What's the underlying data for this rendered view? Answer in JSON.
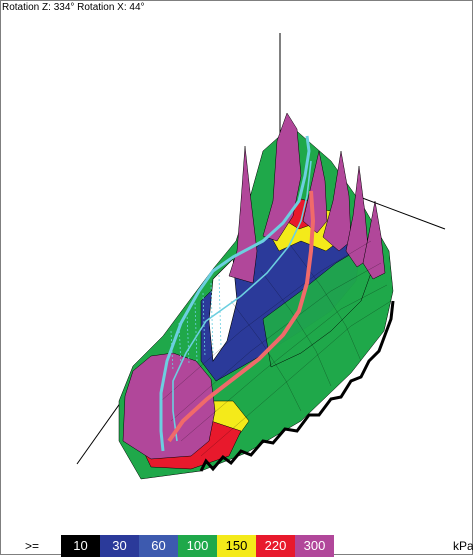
{
  "view": {
    "rotation_label": "Rotation Z: 334° Rotation X: 44°"
  },
  "legend": {
    "prefix": ">=",
    "unit": "kPa",
    "bins": [
      {
        "label": "10",
        "color": "#000000",
        "text_color": "#ffffff"
      },
      {
        "label": "30",
        "color": "#2b3a9a",
        "text_color": "#ffffff"
      },
      {
        "label": "60",
        "color": "#3d5aaf",
        "text_color": "#ffffff"
      },
      {
        "label": "100",
        "color": "#1fa84a",
        "text_color": "#ffffff"
      },
      {
        "label": "150",
        "color": "#f4ea1a",
        "text_color": "#000000"
      },
      {
        "label": "220",
        "color": "#e8192c",
        "text_color": "#ffffff"
      },
      {
        "label": "300",
        "color": "#b1479a",
        "text_color": "#ffffff"
      }
    ]
  },
  "colors": {
    "axis": "#000000",
    "cop_trace_left": "#6ccfe0",
    "cop_trace_right": "#f06a6a"
  }
}
